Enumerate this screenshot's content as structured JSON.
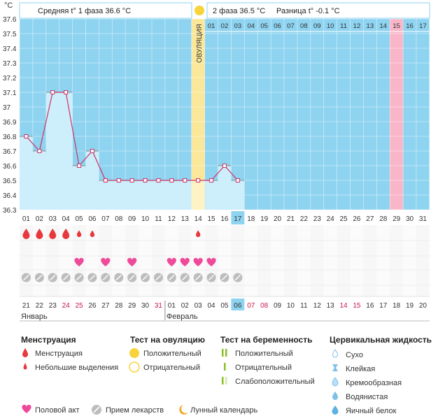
{
  "unit_label": "°C",
  "header": {
    "phase1": "Средняя t° 1 фаза 36.6 °C",
    "phase2": "2 фаза 36.5 °C",
    "difference": "Разница t° -0.1 °C",
    "ovulation_label": "ОВУЛЯЦИЯ"
  },
  "chart_data": {
    "type": "line",
    "x": [
      "01",
      "02",
      "03",
      "04",
      "05",
      "06",
      "07",
      "08",
      "09",
      "10",
      "11",
      "12",
      "13",
      "14",
      "15",
      "16",
      "17",
      "18",
      "19",
      "20",
      "21",
      "22",
      "23",
      "24",
      "25",
      "26",
      "27",
      "28",
      "29",
      "30",
      "31"
    ],
    "series": [
      {
        "values": [
          36.8,
          36.7,
          37.1,
          37.1,
          36.6,
          36.7,
          36.5,
          36.5,
          36.5,
          36.5,
          36.5,
          36.5,
          36.5,
          36.5,
          36.5,
          36.6,
          36.5,
          null,
          null,
          null,
          null,
          null,
          null,
          null,
          null,
          null,
          null,
          null,
          null,
          null,
          null
        ]
      }
    ],
    "y_ticks": [
      "36.3",
      "36.4",
      "36.5",
      "36.6",
      "36.7",
      "36.8",
      "36.9",
      "37",
      "37.1",
      "37.2",
      "37.3",
      "37.4",
      "37.5",
      "37.6"
    ],
    "ylim": [
      36.3,
      37.6
    ],
    "ovulation_day": 14,
    "current_day": 17,
    "phase2_days": [
      "01",
      "02",
      "03",
      "04",
      "05",
      "06",
      "07",
      "08",
      "09",
      "10",
      "11",
      "12",
      "13",
      "14",
      "15",
      "16",
      "17"
    ],
    "highlight_phase2_day": 15,
    "menstruation": [
      1,
      1,
      1,
      1,
      0.5,
      0.5,
      0,
      0,
      0,
      0,
      0,
      0,
      0,
      0.5,
      0,
      0,
      0
    ],
    "intercourse_days": [
      5,
      7,
      9,
      12,
      13,
      14,
      15
    ],
    "medication_days": [
      1,
      2,
      3,
      4,
      5,
      6,
      7,
      8,
      9,
      10,
      11,
      12,
      13,
      14,
      15,
      16,
      17
    ],
    "dates": [
      "21",
      "22",
      "23",
      "24",
      "25",
      "26",
      "27",
      "28",
      "29",
      "30",
      "31",
      "01",
      "02",
      "03",
      "04",
      "05",
      "06",
      "07",
      "08",
      "09",
      "10",
      "11",
      "12",
      "13",
      "14",
      "15",
      "16",
      "17",
      "18",
      "19",
      "20"
    ],
    "red_dates": [
      "24",
      "25",
      "31",
      "07",
      "08",
      "14",
      "15"
    ],
    "months": [
      {
        "label": "Январь",
        "from_index": 0
      },
      {
        "label": "Февраль",
        "from_index": 11
      }
    ]
  },
  "legend": {
    "menstruation": {
      "title": "Менструация",
      "items": [
        "Менструация",
        "Небольшие выделения"
      ]
    },
    "ovulation_test": {
      "title": "Тест на овуляцию",
      "items": [
        "Положительный",
        "Отрицательный"
      ]
    },
    "pregnancy_test": {
      "title": "Тест на беременность",
      "items": [
        "Положительный",
        "Отрицательный",
        "Слабоположительный"
      ]
    },
    "cervical": {
      "title": "Цервикальная жидкость",
      "items": [
        "Сухо",
        "Клейкая",
        "Кремообразная",
        "Водянистая",
        "Яичный белок"
      ]
    },
    "bottom": [
      "Половой акт",
      "Прием лекарств",
      "Лунный календарь"
    ]
  },
  "colors": {
    "sky": "#8ed3f0",
    "fill": "#cdeefb",
    "line": "#cc3366",
    "ovulation": "#fbe79a",
    "pink_col": "#f9b6c8",
    "heart": "#ef4a9a",
    "drop": "#e8383d",
    "pill": "#bdbdbd",
    "sun": "#f8d43c",
    "moon": "#f5a31a",
    "green": "#8cbf26"
  }
}
